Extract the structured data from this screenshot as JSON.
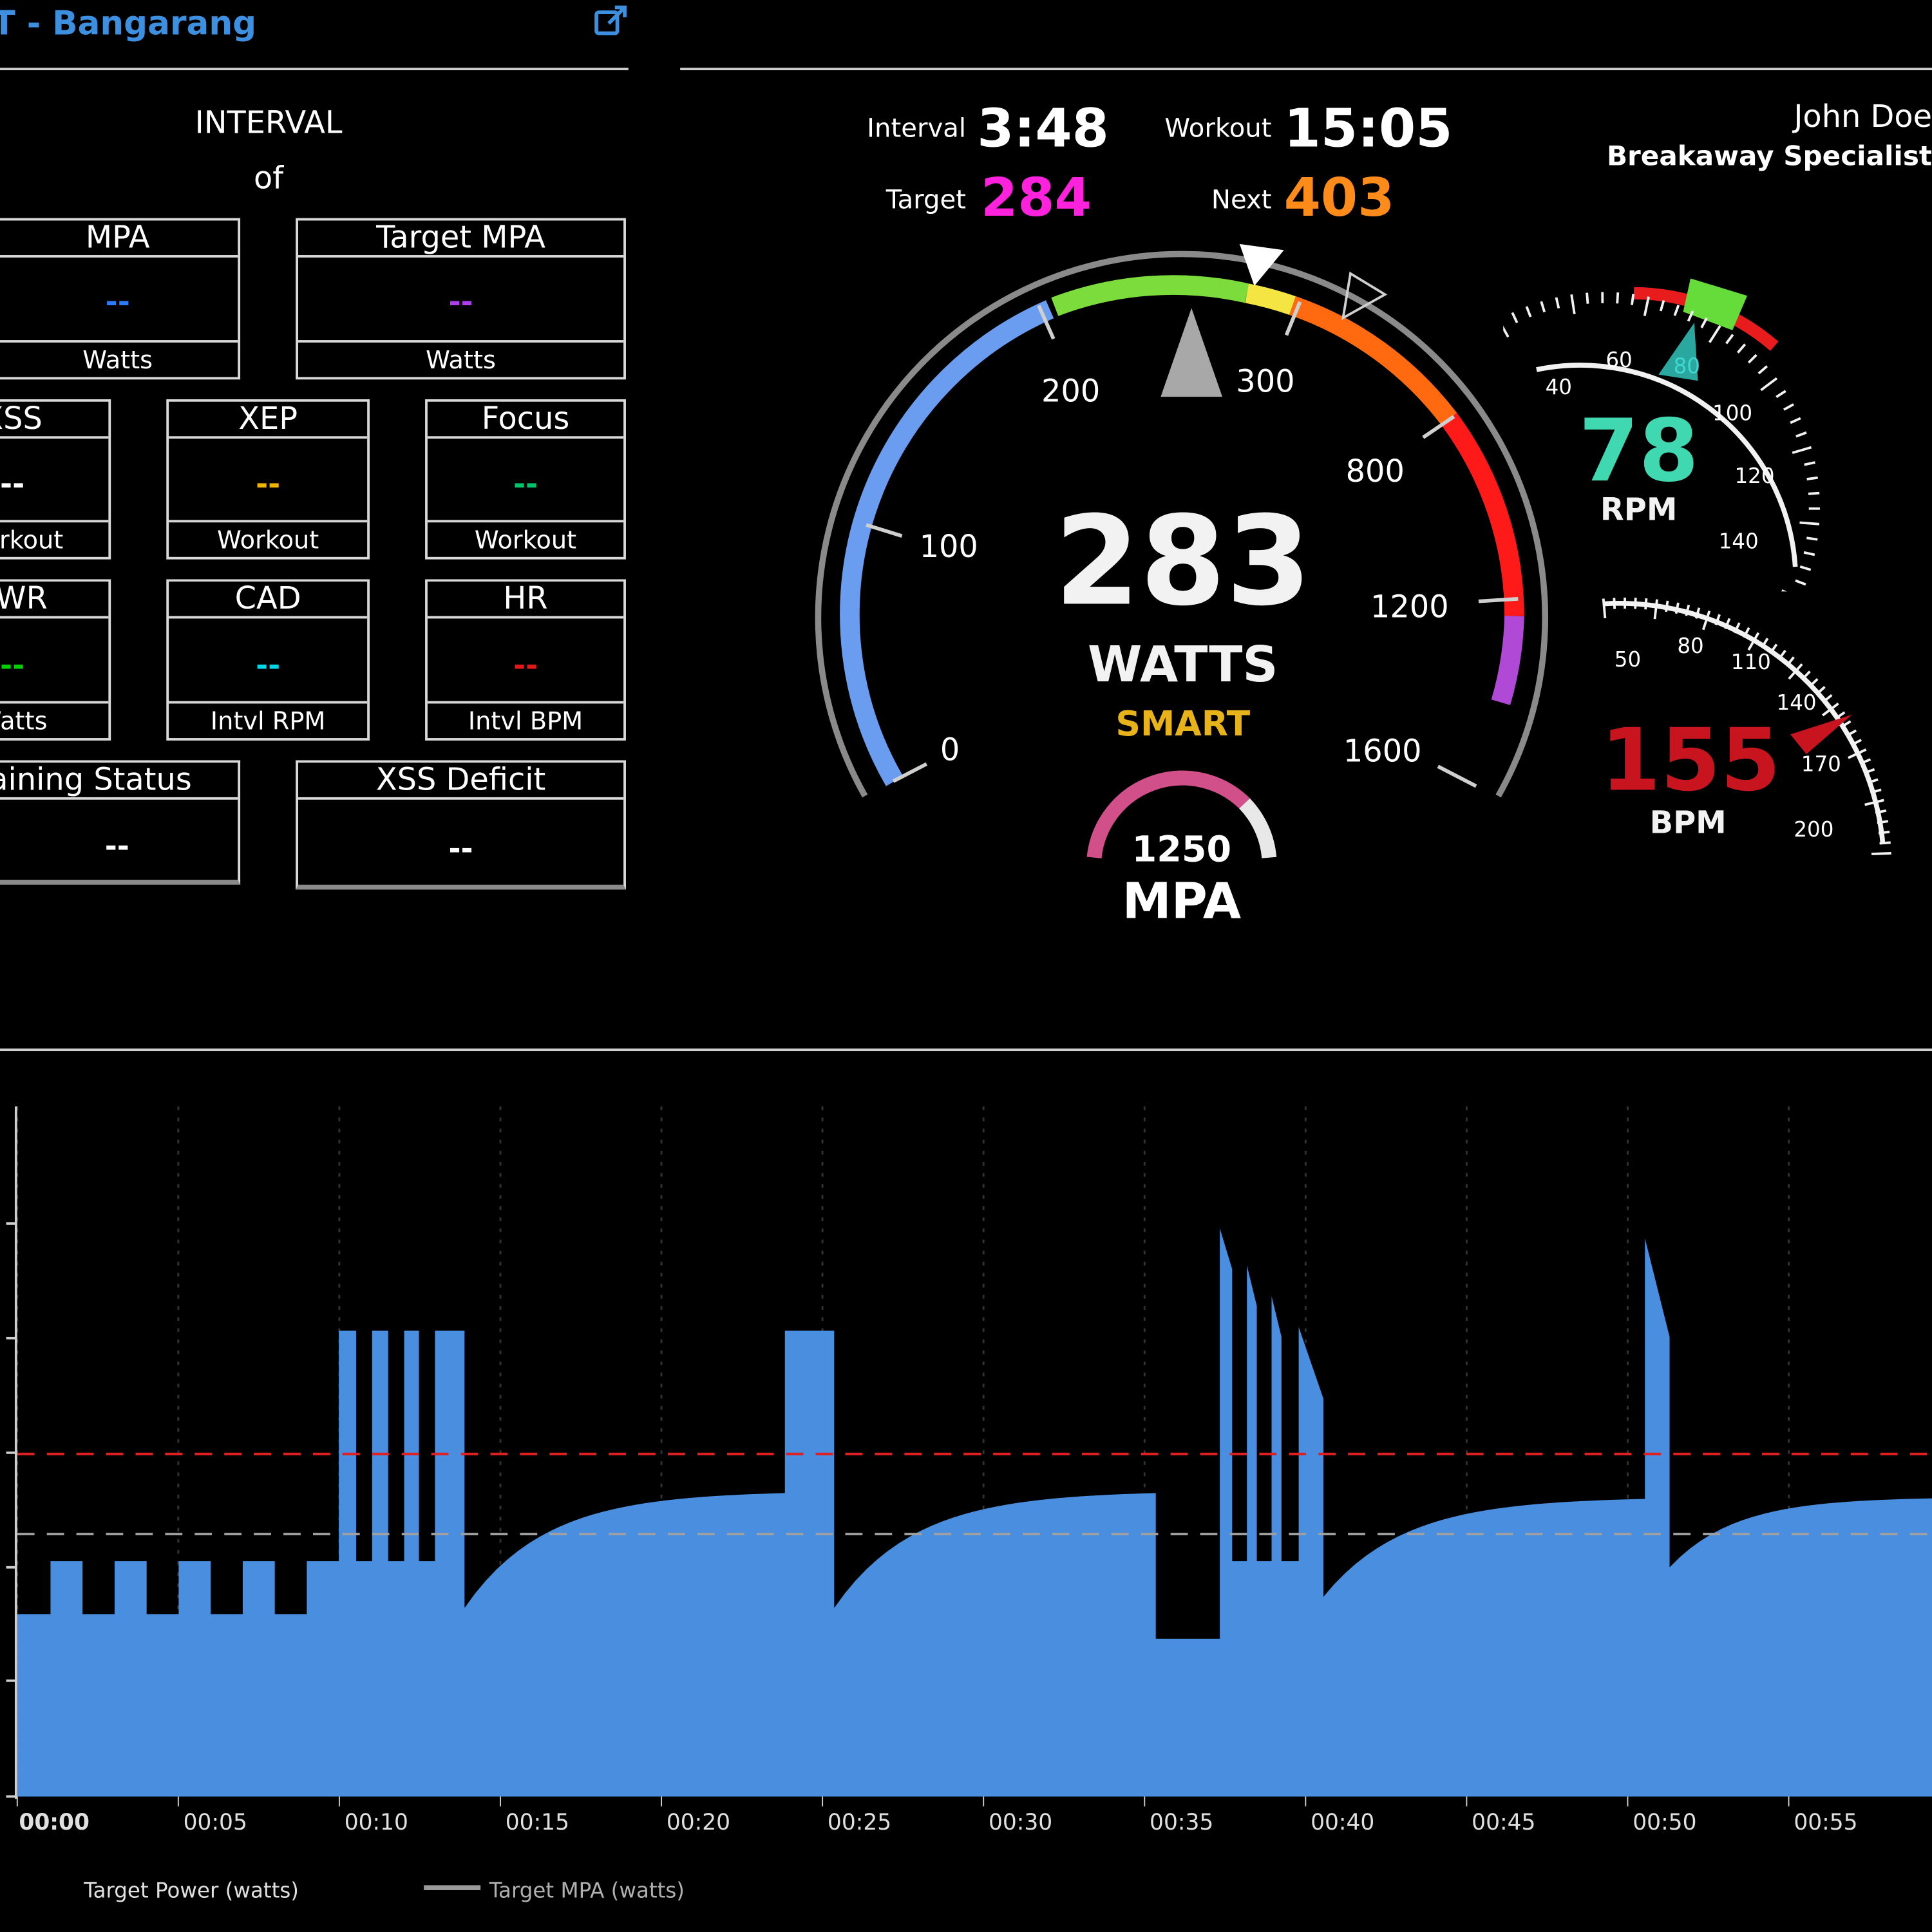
{
  "header": {
    "title": "T - Bangarang",
    "external_link_icon": "external-link-icon"
  },
  "left_panel": {
    "interval_label": "INTERVAL",
    "of_label": "of",
    "mpa_box": {
      "header": "MPA",
      "value": "--",
      "footer": "Watts",
      "color": "#2f7bff"
    },
    "target_mpa_box": {
      "header": "Target MPA",
      "value": "--",
      "footer": "Watts",
      "color": "#b03cf0"
    },
    "xss_box": {
      "header": "XSS",
      "value": "--",
      "footer": "Workout",
      "color": "#ffffff"
    },
    "xep_box": {
      "header": "XEP",
      "value": "--",
      "footer": "Workout",
      "color": "#f0b400"
    },
    "focus_box": {
      "header": "Focus",
      "value": "--",
      "footer": "Workout",
      "color": "#00c46a"
    },
    "pwr_box": {
      "header": "PWR",
      "value": "--",
      "footer": "Watts",
      "color": "#00d000"
    },
    "cad_box": {
      "header": "CAD",
      "value": "--",
      "footer": "Intvl RPM",
      "color": "#00d6e6"
    },
    "hr_box": {
      "header": "HR",
      "value": "--",
      "footer": "Intvl BPM",
      "color": "#e01818"
    },
    "training_status_box": {
      "header": "Training Status",
      "value": "--"
    },
    "xss_deficit_box": {
      "header": "XSS Deficit",
      "value": "--"
    }
  },
  "stats": {
    "interval_label": "Interval",
    "interval_value": "3:48",
    "workout_label": "Workout",
    "workout_value": "15:05",
    "target_label": "Target",
    "target_value": "284",
    "target_color": "#ff22dd",
    "next_label": "Next",
    "next_value": "403",
    "next_color": "#ff8c1a"
  },
  "user": {
    "name": "John Doe",
    "subtitle": "Breakaway Specialist"
  },
  "power_gauge": {
    "value": "283",
    "unit": "WATTS",
    "mode": "SMART",
    "mode_color": "#e8b21a",
    "tick_labels": [
      "0",
      "100",
      "200",
      "300",
      "800",
      "1200",
      "1600"
    ],
    "mpa_value": "1250",
    "mpa_label": "MPA",
    "colors": {
      "blue": "#6a9cf0",
      "green": "#7bdc3c",
      "yellow": "#f4e542",
      "orange": "#ff6a10",
      "red": "#ff1a1a",
      "purple": "#b04ad6"
    }
  },
  "cadence_gauge": {
    "value": "78",
    "unit": "RPM",
    "value_color": "#3fd8b0",
    "tick_labels": [
      "40",
      "60",
      "80",
      "100",
      "120",
      "140"
    ]
  },
  "hr_gauge": {
    "value": "155",
    "unit": "BPM",
    "value_color": "#c8141e",
    "tick_labels": [
      "50",
      "80",
      "110",
      "140",
      "170",
      "200"
    ]
  },
  "chart_data": {
    "type": "area",
    "x_tick_labels": [
      "00:00",
      "00:05",
      "00:10",
      "00:15",
      "00:20",
      "00:25",
      "00:30",
      "00:35",
      "00:40",
      "00:45",
      "00:50",
      "00:55"
    ],
    "series": [
      {
        "name": "Target Power (watts)",
        "color": "#4a8ee0"
      },
      {
        "name": "Target MPA (watts)",
        "color": "#a0a0a0"
      }
    ],
    "ftp_line_color": "#e02020",
    "grid": true,
    "legend_placement": "bottom-left"
  }
}
